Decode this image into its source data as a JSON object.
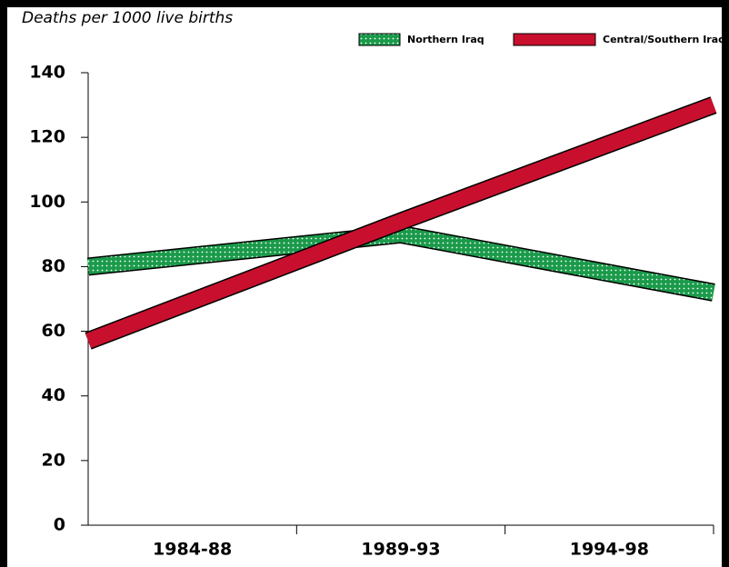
{
  "chart_data": {
    "type": "line",
    "axis_label": "Deaths per 1000 live births",
    "categories": [
      "1984-88",
      "1989-93",
      "1994-98"
    ],
    "series": [
      {
        "name": "Northern Iraq",
        "color": "#1a9a4a",
        "pattern": "dots",
        "values": [
          80,
          90,
          72
        ]
      },
      {
        "name": "Central/Southern Iraq",
        "color": "#c8102e",
        "values": [
          57,
          94,
          130
        ]
      }
    ],
    "ylim": [
      0,
      140
    ],
    "yticks": [
      0,
      20,
      40,
      60,
      80,
      100,
      120,
      140
    ]
  }
}
